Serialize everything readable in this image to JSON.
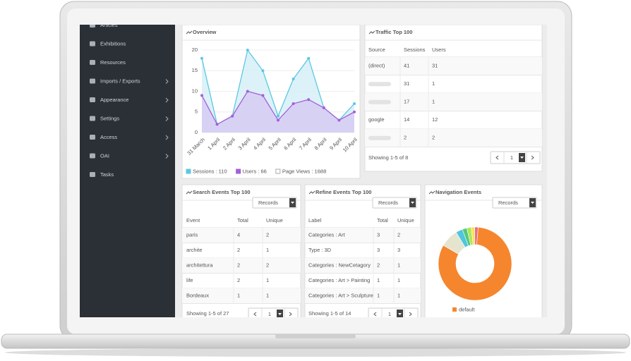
{
  "sidebar": {
    "items": [
      {
        "label": "Articles",
        "has_submenu": false
      },
      {
        "label": "Exhibitions",
        "has_submenu": false
      },
      {
        "label": "Resources",
        "has_submenu": false
      },
      {
        "label": "Imports / Exports",
        "has_submenu": true
      },
      {
        "label": "Appearance",
        "has_submenu": true
      },
      {
        "label": "Settings",
        "has_submenu": true
      },
      {
        "label": "Access",
        "has_submenu": true
      },
      {
        "label": "OAI",
        "has_submenu": true
      },
      {
        "label": "Tasks",
        "has_submenu": false
      }
    ]
  },
  "overview": {
    "type": "line",
    "title": "Overview",
    "categories": [
      "31 March",
      "1 April",
      "2 April",
      "3 April",
      "4 April",
      "5 April",
      "6 April",
      "7 April",
      "8 April",
      "9 April",
      "10 April"
    ],
    "series": [
      {
        "name": "Sessions",
        "color": "#5bc8e2",
        "fill": "#d3eff6",
        "values": [
          18,
          2,
          4,
          20,
          15,
          4,
          13,
          18,
          6,
          3,
          7
        ]
      },
      {
        "name": "Users",
        "color": "#a65fd8",
        "fill": "#d6c9f3",
        "values": [
          9,
          2,
          4,
          10,
          9,
          3,
          7,
          8,
          6,
          3,
          5
        ]
      }
    ],
    "ylim": [
      0,
      20
    ],
    "yticks": [
      0,
      5,
      10,
      15,
      20
    ],
    "grid": true,
    "legend": [
      {
        "label": "Sessions : 110",
        "color": "#5bc8e2"
      },
      {
        "label": "Users : 66",
        "color": "#a65fd8"
      },
      {
        "label": "Page Views : 1688",
        "color": null
      }
    ]
  },
  "traffic": {
    "title": "Traffic Top 100",
    "columns": [
      "Source",
      "Sessions",
      "Users"
    ],
    "rows": [
      [
        "(direct)",
        "41",
        "31"
      ],
      [
        null,
        "31",
        "1"
      ],
      [
        null,
        "17",
        "1"
      ],
      [
        "google",
        "14",
        "12"
      ],
      [
        null,
        "2",
        "2"
      ]
    ],
    "footer": "Showing 1-5 of 8",
    "page": "1"
  },
  "search_events": {
    "title": "Search Events Top 100",
    "select": "Records",
    "columns": [
      "Event",
      "Total",
      "Unique"
    ],
    "rows": [
      [
        "paris",
        "4",
        "2"
      ],
      [
        "archite",
        "2",
        "1"
      ],
      [
        "architettura",
        "2",
        "2"
      ],
      [
        "life",
        "2",
        "1"
      ],
      [
        "Bordeaux",
        "1",
        "1"
      ]
    ],
    "footer": "Showing 1-5 of 27",
    "page": "1"
  },
  "refine_events": {
    "title": "Refine Events Top 100",
    "select": "Records",
    "columns": [
      "Label",
      "Total",
      "Unique"
    ],
    "rows": [
      [
        "Categories : Art",
        "3",
        "2"
      ],
      [
        "Type : 3D",
        "3",
        "3"
      ],
      [
        "Categories : NewCetagory",
        "2",
        "1"
      ],
      [
        "Categories : Art > Painting",
        "1",
        "1"
      ],
      [
        "Categories : Art > Sculpture",
        "1",
        "1"
      ]
    ],
    "footer": "Showing 1-5 of 14",
    "page": "1"
  },
  "navigation_events": {
    "type": "donut",
    "title": "Navigation Events",
    "select": "Records",
    "values": [
      82,
      8,
      3,
      2,
      2,
      1.5,
      1.5
    ],
    "colors": [
      "#f5862e",
      "#e5e5cf",
      "#4fc6de",
      "#54c97a",
      "#b6e35a",
      "#f2e45b",
      "#ef6b80"
    ],
    "legend": [
      {
        "label": "default",
        "color": "#f5862e"
      }
    ]
  }
}
